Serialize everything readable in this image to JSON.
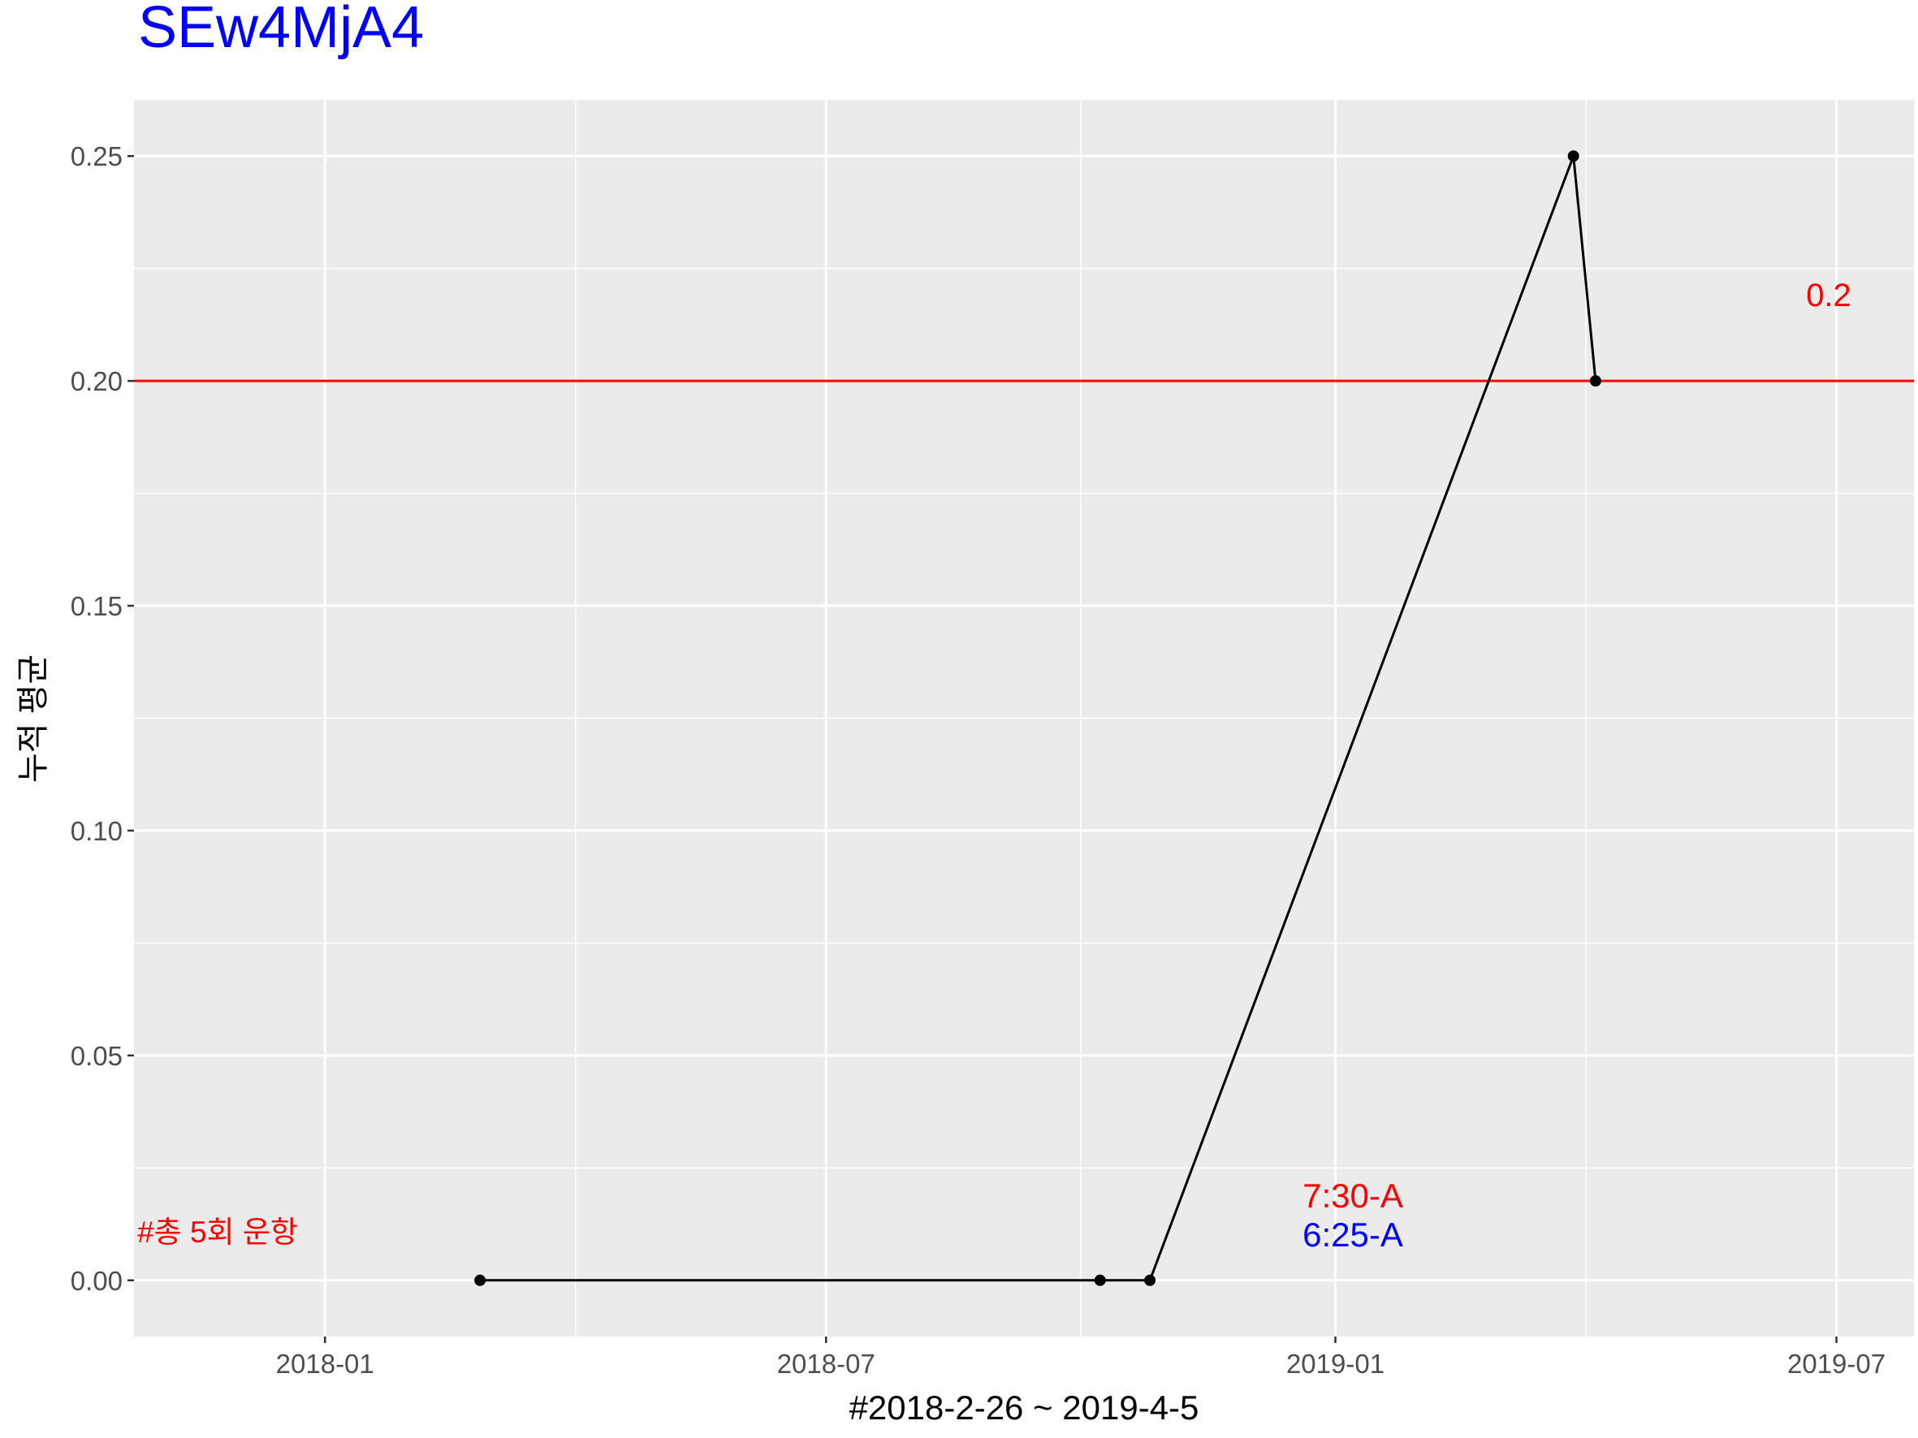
{
  "chart_data": {
    "type": "line",
    "title": "SEw4MjA4",
    "xlabel": "#2018-2-26 ~ 2019-4-5",
    "ylabel": "누적 평균",
    "ylim": [
      -0.0125,
      0.2625
    ],
    "xlim": [
      "2017-10-24",
      "2019-07-29"
    ],
    "x_ticks": [
      {
        "date": "2018-01-01",
        "label": "2018-01"
      },
      {
        "date": "2018-07-01",
        "label": "2018-07"
      },
      {
        "date": "2019-01-01",
        "label": "2019-01"
      },
      {
        "date": "2019-07-01",
        "label": "2019-07"
      }
    ],
    "y_ticks": [
      {
        "value": 0.0,
        "label": "0.00"
      },
      {
        "value": 0.05,
        "label": "0.05"
      },
      {
        "value": 0.1,
        "label": "0.10"
      },
      {
        "value": 0.15,
        "label": "0.15"
      },
      {
        "value": 0.2,
        "label": "0.20"
      },
      {
        "value": 0.25,
        "label": "0.25"
      }
    ],
    "series": [
      {
        "name": "누적 평균",
        "x": [
          "2018-02-26",
          "2018-10-08",
          "2018-10-26",
          "2019-03-28",
          "2019-04-05"
        ],
        "y": [
          0.0,
          0.0,
          0.0,
          0.25,
          0.2
        ]
      }
    ],
    "reference_line": {
      "y": 0.2,
      "color": "#ff0000",
      "label": "0.2"
    },
    "annotations": [
      {
        "text": "#총 5회 운항",
        "color": "#ff0000"
      },
      {
        "text": "7:30-A",
        "color": "#ff0000"
      },
      {
        "text": "6:25-A",
        "color": "#0000ff"
      }
    ]
  },
  "colors": {
    "title": "#0000ff",
    "panel": "#ebebeb",
    "grid": "#ffffff",
    "line": "#000000",
    "ref": "#ff0000",
    "red_text": "#ff0000",
    "blue_text": "#0000ff"
  }
}
